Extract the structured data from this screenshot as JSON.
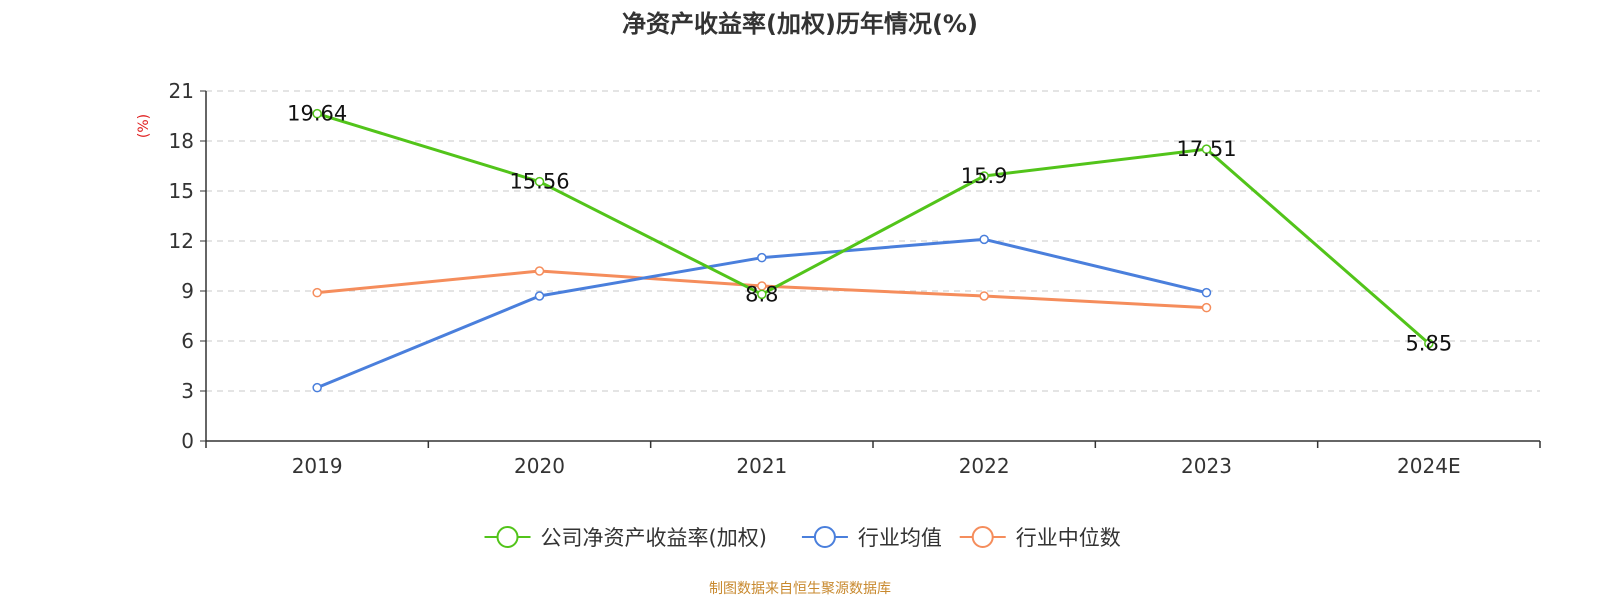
{
  "chart_data": {
    "type": "line",
    "title": "净资产收益率(加权)历年情况(%)",
    "ylabel": "(%)",
    "xlabel": "",
    "categories": [
      "2019",
      "2020",
      "2021",
      "2022",
      "2023",
      "2024E"
    ],
    "ylim": [
      0,
      21
    ],
    "yticks": [
      0,
      3,
      6,
      9,
      12,
      15,
      18,
      21
    ],
    "grid": true,
    "legend_position": "bottom-center",
    "series": [
      {
        "name": "公司净资产收益率(加权)",
        "color": "#52c41a",
        "values": [
          19.64,
          15.56,
          8.8,
          15.9,
          17.51,
          5.85
        ],
        "labels": [
          "19.64",
          "15.56",
          "8.8",
          "15.9",
          "17.51",
          "5.85"
        ]
      },
      {
        "name": "行业均值",
        "color": "#4a7fdc",
        "values": [
          3.2,
          8.7,
          11.0,
          12.1,
          8.9,
          null
        ]
      },
      {
        "name": "行业中位数",
        "color": "#f58d5c",
        "values": [
          8.9,
          10.2,
          9.3,
          8.7,
          8.0,
          null
        ]
      }
    ]
  },
  "footer": {
    "source_text": "制图数据来自恒生聚源数据库"
  }
}
